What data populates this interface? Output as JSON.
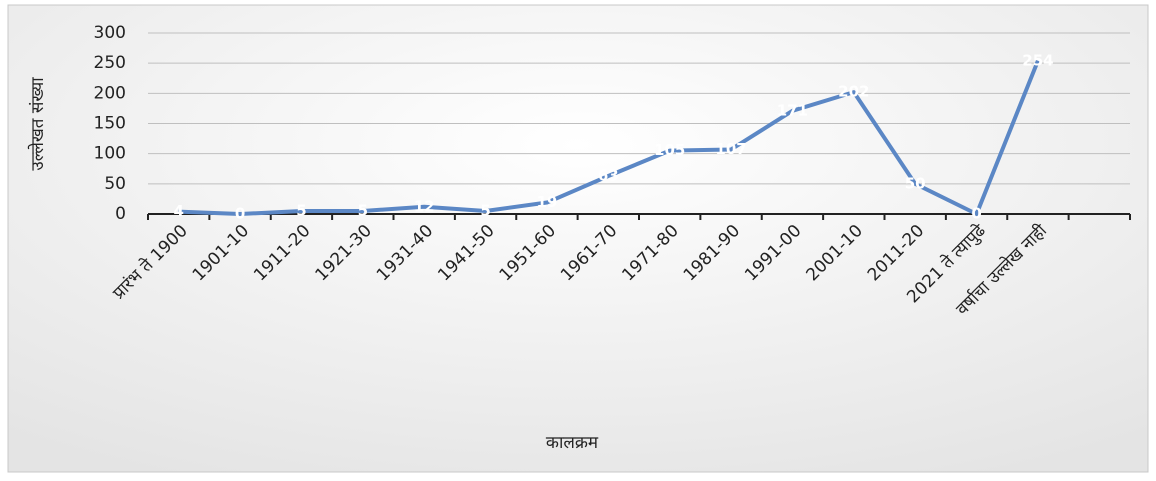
{
  "chart_data": {
    "type": "line",
    "x_label": "कालक्रम",
    "y_label": "उल्लेखत संख्या",
    "categories": [
      "प्रारंभ ते 1900",
      "1901-10",
      "1911-20",
      "1921-30",
      "1931-40",
      "1941-50",
      "1951-60",
      "1961-70",
      "1971-80",
      "1981-90",
      "1991-00",
      "2001-10",
      "2011-20",
      "2021 ते त्यापुढे",
      "वर्षाचा उल्लेख नाही",
      null
    ],
    "values": [
      4,
      0,
      5,
      5,
      12,
      5,
      19,
      63,
      105,
      107,
      171,
      202,
      50,
      0,
      254,
      null
    ],
    "color": "#5b87c5",
    "ylim": [
      0,
      300
    ],
    "yticks": [
      0,
      50,
      100,
      150,
      200,
      250,
      300
    ],
    "grid": true
  }
}
